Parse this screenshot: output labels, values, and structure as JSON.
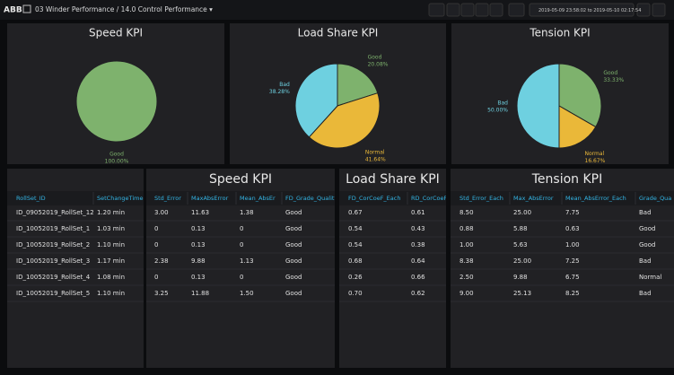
{
  "header": {
    "logo": "ABB",
    "breadcrumb": "03 Winder Performance / 14.0 Control Performance ▾",
    "time_range": "2019-05-09 23:58:02 to 2019-05-10 02:17:54"
  },
  "pies": [
    {
      "title": "Speed KPI",
      "slices": [
        {
          "label": "Good",
          "value": 100,
          "value_label": "100.00%",
          "color": "#7eb26d"
        }
      ]
    },
    {
      "title": "Load Share KPI",
      "slices": [
        {
          "label": "Good",
          "value": 20.08,
          "value_label": "20.08%",
          "color": "#7eb26d"
        },
        {
          "label": "Normal",
          "value": 41.64,
          "value_label": "41.64%",
          "color": "#eab839"
        },
        {
          "label": "Bad",
          "value": 38.28,
          "value_label": "38.28%",
          "color": "#6ed0e0"
        }
      ]
    },
    {
      "title": "Tension KPI",
      "slices": [
        {
          "label": "Good",
          "value": 33.33,
          "value_label": "33.33%",
          "color": "#7eb26d"
        },
        {
          "label": "Normal",
          "value": 16.67,
          "value_label": "16.67%",
          "color": "#eab839"
        },
        {
          "label": "Bad",
          "value": 50.0,
          "value_label": "50.00%",
          "color": "#6ed0e0"
        }
      ]
    }
  ],
  "tables": [
    {
      "columns": [
        "RollSet_ID",
        "SetChangeTime"
      ],
      "rows": [
        [
          "ID_09052019_RollSet_12",
          "1.20 min"
        ],
        [
          "ID_10052019_RollSet_1",
          "1.03 min"
        ],
        [
          "ID_10052019_RollSet_2",
          "1.10 min"
        ],
        [
          "ID_10052019_RollSet_3",
          "1.17 min"
        ],
        [
          "ID_10052019_RollSet_4",
          "1.08 min"
        ],
        [
          "ID_10052019_RollSet_5",
          "1.10 min"
        ]
      ]
    },
    {
      "title": "Speed KPI",
      "columns": [
        "Std_Error",
        "MaxAbsError",
        "Mean_AbsEr",
        "FD_Grade_Quality"
      ],
      "rows": [
        [
          "3.00",
          "11.63",
          "1.38",
          "Good"
        ],
        [
          "0",
          "0.13",
          "0",
          "Good"
        ],
        [
          "0",
          "0.13",
          "0",
          "Good"
        ],
        [
          "2.38",
          "9.88",
          "1.13",
          "Good"
        ],
        [
          "0",
          "0.13",
          "0",
          "Good"
        ],
        [
          "3.25",
          "11.88",
          "1.50",
          "Good"
        ]
      ]
    },
    {
      "title": "Load Share KPI",
      "columns": [
        "FD_CorCoeF_Each",
        "RD_CorCoeF"
      ],
      "rows": [
        [
          "0.67",
          "0.61"
        ],
        [
          "0.54",
          "0.43"
        ],
        [
          "0.54",
          "0.38"
        ],
        [
          "0.68",
          "0.64"
        ],
        [
          "0.26",
          "0.66"
        ],
        [
          "0.70",
          "0.62"
        ]
      ]
    },
    {
      "title": "Tension KPI",
      "columns": [
        "Std_Error_Each",
        "Max_AbsError",
        "Mean_AbsError_Each",
        "Grade_Qua"
      ],
      "rows": [
        [
          "8.50",
          "25.00",
          "7.75",
          "Bad"
        ],
        [
          "0.88",
          "5.88",
          "0.63",
          "Good"
        ],
        [
          "1.00",
          "5.63",
          "1.00",
          "Good"
        ],
        [
          "8.38",
          "25.00",
          "7.25",
          "Bad"
        ],
        [
          "2.50",
          "9.88",
          "6.75",
          "Normal"
        ],
        [
          "9.00",
          "25.13",
          "8.25",
          "Bad"
        ]
      ]
    }
  ]
}
